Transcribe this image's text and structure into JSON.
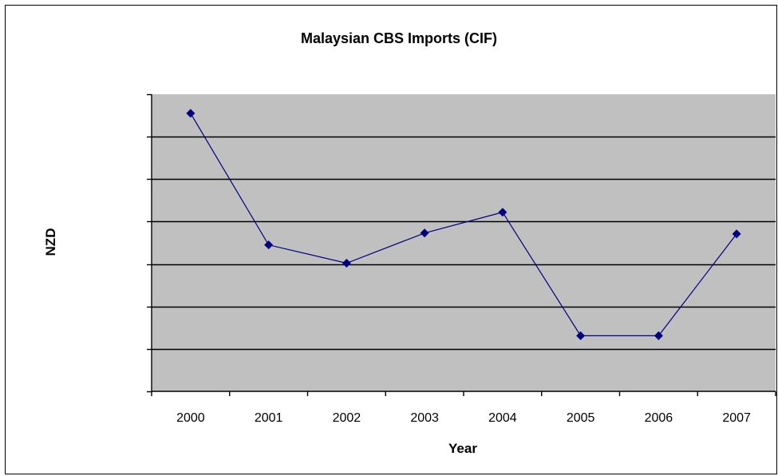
{
  "chart_data": {
    "type": "line",
    "title": "Malaysian CBS Imports (CIF)",
    "xlabel": "Year",
    "ylabel": "NZD",
    "categories": [
      "2000",
      "2001",
      "2002",
      "2003",
      "2004",
      "2005",
      "2006",
      "2007"
    ],
    "series": [
      {
        "values": [
          6.55,
          3.45,
          3.02,
          3.73,
          4.22,
          1.31,
          1.31,
          3.71
        ]
      }
    ],
    "ylim": [
      0,
      7
    ],
    "y_tick_labels_shown": false,
    "grid": true,
    "legend": "none",
    "colors": {
      "plot_background": "#c0c0c0",
      "gridline": "#000000",
      "series_line": "#000080",
      "marker": "#000080"
    }
  }
}
